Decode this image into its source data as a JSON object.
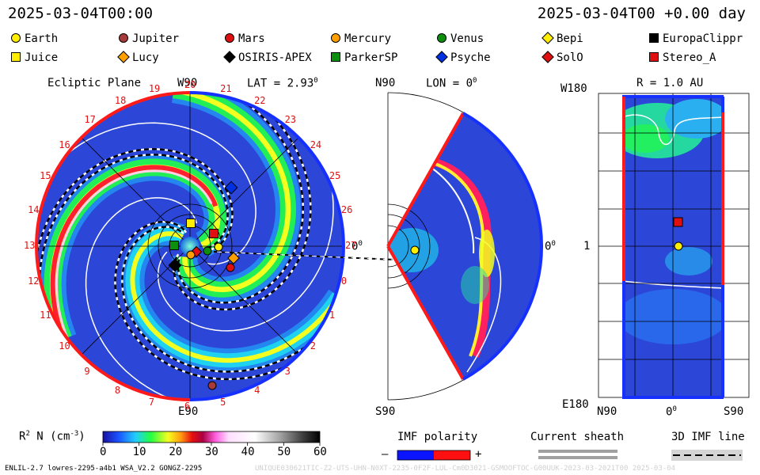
{
  "header": {
    "time_left": "2025-03-04T00:00",
    "time_right": "2025-03-04T00 +0.00 day"
  },
  "legend": [
    {
      "name": "Earth",
      "shape": "circle",
      "color": "#ffee00"
    },
    {
      "name": "Jupiter",
      "shape": "circle",
      "color": "#a83a3a"
    },
    {
      "name": "Mars",
      "shape": "circle",
      "color": "#e01010"
    },
    {
      "name": "Mercury",
      "shape": "circle",
      "color": "#ff9f00"
    },
    {
      "name": "Venus",
      "shape": "circle",
      "color": "#0c8f0c"
    },
    {
      "name": "Bepi",
      "shape": "diamond",
      "color": "#ffee00"
    },
    {
      "name": "EuropaClippr",
      "shape": "square",
      "color": "#000000"
    },
    {
      "name": "Juice",
      "shape": "square",
      "color": "#ffee00"
    },
    {
      "name": "Lucy",
      "shape": "diamond",
      "color": "#ff9f00"
    },
    {
      "name": "OSIRIS-APEX",
      "shape": "diamond",
      "color": "#000000"
    },
    {
      "name": "ParkerSP",
      "shape": "square",
      "color": "#0c8f0c"
    },
    {
      "name": "Psyche",
      "shape": "diamond",
      "color": "#0030e0"
    },
    {
      "name": "SolO",
      "shape": "diamond",
      "color": "#e01010"
    },
    {
      "name": "Stereo_A",
      "shape": "square",
      "color": "#e01010"
    }
  ],
  "panel_ecliptic": {
    "title": "Ecliptic Plane",
    "top": "W90",
    "lat": "LAT = 2.93",
    "deg": "0",
    "bottom": "E90",
    "right": "0",
    "right_deg": "0",
    "carrington": [
      "20",
      "21",
      "22",
      "23",
      "24",
      "25",
      "26",
      "27",
      "0",
      "1",
      "2",
      "3",
      "4",
      "5",
      "6",
      "7",
      "8",
      "9",
      "10",
      "11",
      "12",
      "13",
      "14",
      "15",
      "16",
      "17",
      "18",
      "19"
    ]
  },
  "panel_meridional": {
    "top": "N90",
    "lon": "LON = 0",
    "deg": "0",
    "bottom": "S90",
    "right": "0",
    "right_deg": "0"
  },
  "panel_radial": {
    "r": "R = 1.0 AU",
    "top_left": "W180",
    "mid_left": "1",
    "bottom_left": "E180",
    "x_left": "N90",
    "x_mid": "0",
    "x_mid_deg": "0",
    "x_right": "S90"
  },
  "colorbar": {
    "label": "R  N (cm  )",
    "sup_r": "2",
    "sup_cm": "-3",
    "ticks": [
      "0",
      "10",
      "20",
      "30",
      "40",
      "50",
      "60"
    ]
  },
  "imf": {
    "label": "IMF polarity",
    "minus": "–",
    "plus": "+",
    "neg_color": "#0a14ff",
    "pos_color": "#ff1010"
  },
  "sheath": {
    "label": "Current sheath"
  },
  "imf3d": {
    "label": "3D IMF line"
  },
  "footer": {
    "left": "ENLIL-2.7 lowres-2295-a4b1 WSA_V2.2 GONGZ-2295",
    "right": "UNIQUE030621TIC-Z2-UTS-UHN-N0XT-2235-0F2F-LUL-Cm0D3021-GSMOOFTOC-G00UUK-2023-03-2021T00      2025-03-04"
  }
}
